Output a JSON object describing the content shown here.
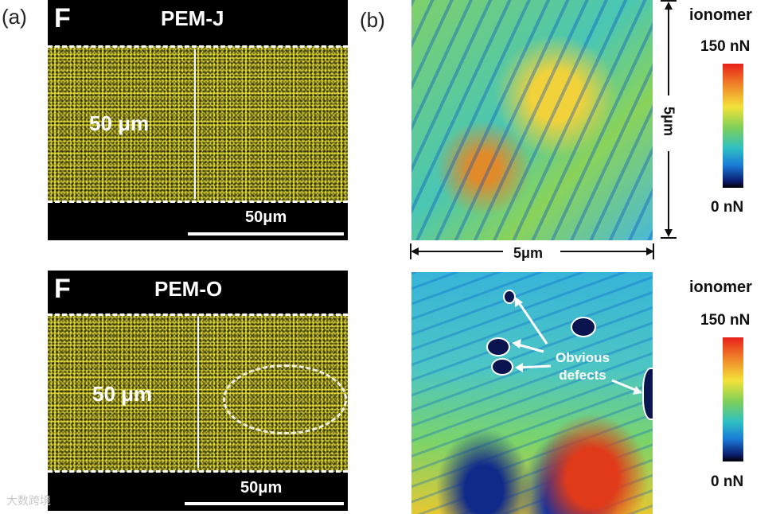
{
  "panel_a": {
    "letter": "(a)",
    "top_map": {
      "element_tag": "F",
      "title": "PEM-J",
      "thickness_label": "50 μm",
      "scale_label": "50μm"
    },
    "bottom_map": {
      "element_tag": "F",
      "title": "PEM-O",
      "thickness_label": "50 μm",
      "scale_label": "50μm"
    }
  },
  "panel_b": {
    "letter": "(b)",
    "top_afm": {
      "dim_vertical": "5μm",
      "dim_horizontal": "5μm"
    },
    "bottom_afm": {
      "annotation": "Obvious defects"
    },
    "colorbar_top": {
      "title": "ionomer",
      "max": "150 nN",
      "min": "0 nN"
    },
    "colorbar_bottom": {
      "title": "ionomer",
      "max": "150 nN",
      "min": "0 nN"
    }
  },
  "watermark": "大数跨境"
}
